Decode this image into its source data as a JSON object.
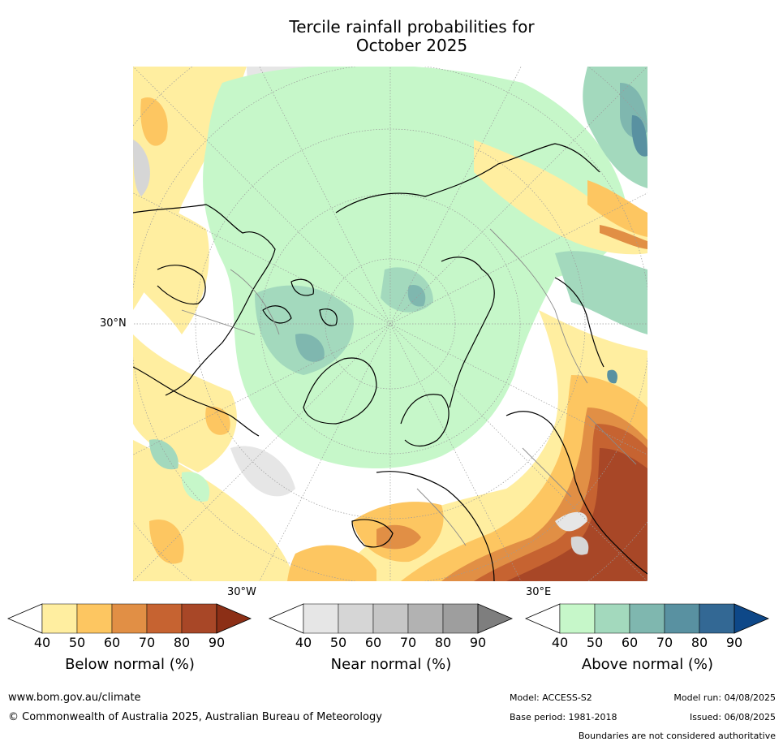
{
  "title_line1": "Tercile rainfall probabilities for",
  "title_line2": "October 2025",
  "map": {
    "projection": "north polar stereographic",
    "lat_label": "30°N",
    "lon_label_left": "30°W",
    "lon_label_right": "30°E"
  },
  "colorbars": [
    {
      "label": "Below normal (%)",
      "ticks": [
        "40",
        "50",
        "60",
        "70",
        "80",
        "90"
      ],
      "colors": [
        "#ffeea0",
        "#fdc661",
        "#e18f45",
        "#c66331",
        "#a84727",
        "#8c2f16"
      ]
    },
    {
      "label": "Near normal (%)",
      "ticks": [
        "40",
        "50",
        "60",
        "70",
        "80",
        "90"
      ],
      "colors": [
        "#e6e6e6",
        "#d6d6d6",
        "#c6c6c6",
        "#b2b2b2",
        "#9e9e9e",
        "#7e7e7e"
      ]
    },
    {
      "label": "Above normal (%)",
      "ticks": [
        "40",
        "50",
        "60",
        "70",
        "80",
        "90"
      ],
      "colors": [
        "#c6f7c9",
        "#a3d9bd",
        "#7fb7af",
        "#5991a1",
        "#336894",
        "#0e4888"
      ]
    }
  ],
  "footer": {
    "website": "www.bom.gov.au/climate",
    "copyright": "© Commonwealth of Australia 2025, Australian Bureau of Meteorology",
    "model": "Model: ACCESS-S2",
    "model_run": "Model run: 04/08/2025",
    "base_period": "Base period: 1981-2018",
    "issued": "Issued: 06/08/2025",
    "disclaimer": "Boundaries are not considered authoritative"
  }
}
